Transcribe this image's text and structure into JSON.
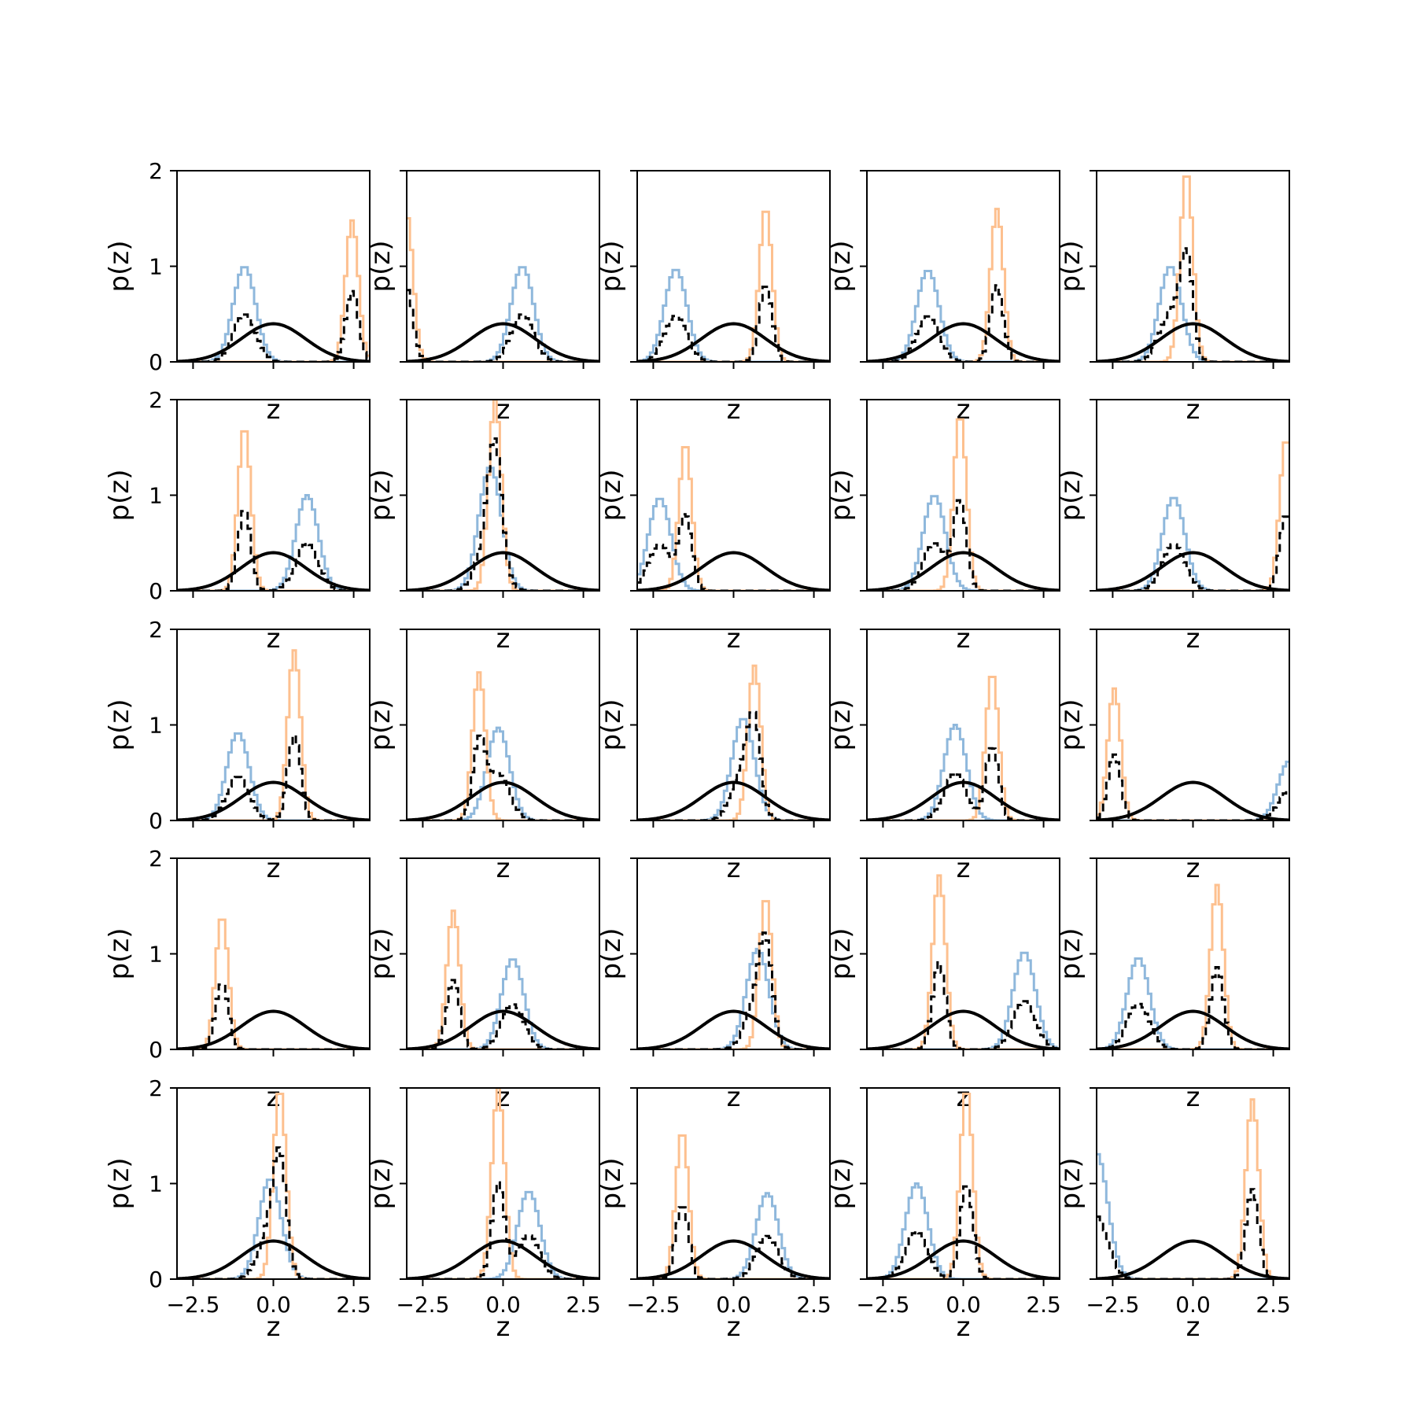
{
  "chart_data": {
    "type": "grid-of-histograms",
    "rows": 5,
    "cols": 5,
    "xlabel": "z",
    "ylabel": "p(z)",
    "xlim": [
      -3.0,
      3.0
    ],
    "ylim": [
      0,
      2
    ],
    "xticks": [
      -2.5,
      0.0,
      2.5
    ],
    "xtick_labels": [
      "−2.5",
      "0.0",
      "2.5"
    ],
    "yticks": [
      0,
      1,
      2
    ],
    "ytick_labels": [
      "0",
      "1",
      "2"
    ],
    "colors": {
      "blue": "#8fb8dc",
      "orange": "#fdc08f",
      "dashed": "#000000",
      "curve": "#000000"
    },
    "reference_curve": {
      "name": "",
      "type": "standard-normal-pdf",
      "mean": 0,
      "sd": 1
    },
    "panels": [
      {
        "blue": {
          "mean": -0.9,
          "peak": 1.0
        },
        "orange": {
          "mean": 2.45,
          "peak": 1.48
        }
      },
      {
        "blue": {
          "mean": 0.6,
          "peak": 1.0
        },
        "orange": {
          "mean": -3.0,
          "peak": 1.55
        }
      },
      {
        "blue": {
          "mean": -1.8,
          "peak": 0.97
        },
        "orange": {
          "mean": 1.0,
          "peak": 1.62
        }
      },
      {
        "blue": {
          "mean": -1.1,
          "peak": 0.96
        },
        "orange": {
          "mean": 1.05,
          "peak": 1.6
        }
      },
      {
        "blue": {
          "mean": -0.7,
          "peak": 1.0
        },
        "orange": {
          "mean": -0.2,
          "peak": 2.0
        }
      },
      {
        "blue": {
          "mean": 1.05,
          "peak": 1.0
        },
        "orange": {
          "mean": -0.9,
          "peak": 1.72
        }
      },
      {
        "blue": {
          "mean": -0.4,
          "peak": 1.3
        },
        "orange": {
          "mean": -0.25,
          "peak": 2.0
        }
      },
      {
        "blue": {
          "mean": -2.3,
          "peak": 0.97
        },
        "orange": {
          "mean": -1.5,
          "peak": 1.55
        }
      },
      {
        "blue": {
          "mean": -0.9,
          "peak": 1.0
        },
        "orange": {
          "mean": -0.1,
          "peak": 1.85
        }
      },
      {
        "blue": {
          "mean": -0.6,
          "peak": 0.98
        },
        "orange": {
          "mean": 2.9,
          "peak": 1.6
        }
      },
      {
        "blue": {
          "mean": -1.1,
          "peak": 0.92
        },
        "orange": {
          "mean": 0.65,
          "peak": 1.78
        }
      },
      {
        "blue": {
          "mean": -0.15,
          "peak": 0.97
        },
        "orange": {
          "mean": -0.75,
          "peak": 1.55
        }
      },
      {
        "blue": {
          "mean": 0.3,
          "peak": 1.07
        },
        "orange": {
          "mean": 0.65,
          "peak": 1.62
        }
      },
      {
        "blue": {
          "mean": -0.25,
          "peak": 1.0
        },
        "orange": {
          "mean": 0.9,
          "peak": 1.55
        }
      },
      {
        "blue": {
          "mean": 3.0,
          "peak": 0.62
        },
        "orange": {
          "mean": -2.45,
          "peak": 1.38
        }
      },
      {
        "blue": null,
        "orange": {
          "mean": -1.6,
          "peak": 1.4
        }
      },
      {
        "blue": {
          "mean": 0.3,
          "peak": 0.95
        },
        "orange": {
          "mean": -1.55,
          "peak": 1.45
        }
      },
      {
        "blue": {
          "mean": 0.75,
          "peak": 1.05
        },
        "orange": {
          "mean": 1.0,
          "peak": 1.6
        }
      },
      {
        "blue": {
          "mean": 1.9,
          "peak": 1.02
        },
        "orange": {
          "mean": -0.75,
          "peak": 1.82
        }
      },
      {
        "blue": {
          "mean": -1.7,
          "peak": 0.96
        },
        "orange": {
          "mean": 0.75,
          "peak": 1.72
        }
      },
      {
        "blue": {
          "mean": -0.1,
          "peak": 1.05
        },
        "orange": {
          "mean": 0.2,
          "peak": 2.0
        }
      },
      {
        "blue": {
          "mean": 0.8,
          "peak": 0.92
        },
        "orange": {
          "mean": -0.15,
          "peak": 2.0
        }
      },
      {
        "blue": {
          "mean": 1.05,
          "peak": 0.9
        },
        "orange": {
          "mean": -1.6,
          "peak": 1.55
        }
      },
      {
        "blue": {
          "mean": -1.45,
          "peak": 1.0
        },
        "orange": {
          "mean": 0.1,
          "peak": 2.0
        }
      },
      {
        "blue": {
          "mean": -3.0,
          "peak": 1.32
        },
        "orange": {
          "mean": 1.85,
          "peak": 1.88
        }
      }
    ]
  }
}
